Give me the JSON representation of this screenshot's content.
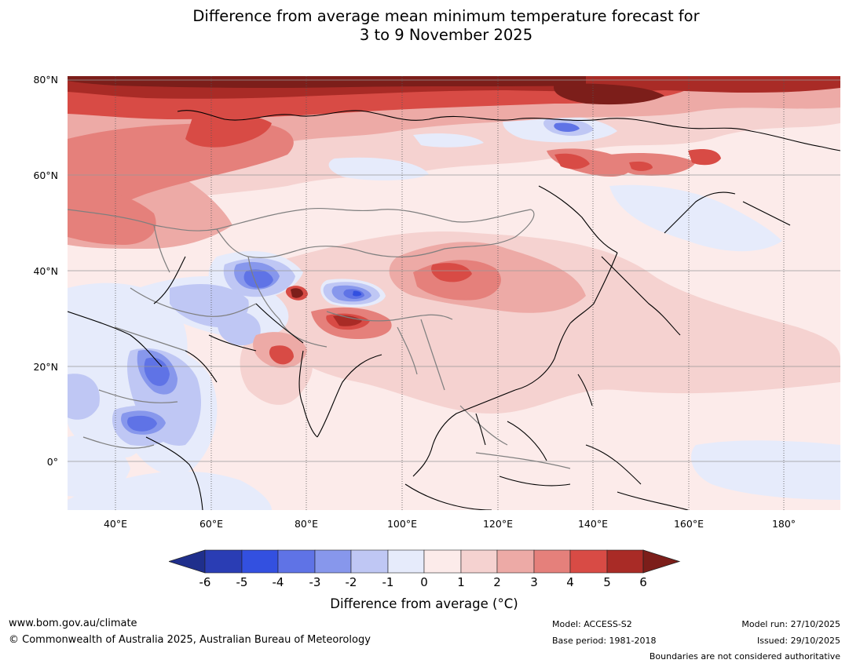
{
  "title": {
    "line1": "Difference from average mean minimum temperature forecast for",
    "line2": "3 to 9 November 2025"
  },
  "map": {
    "lat_labels": [
      "80°N",
      "60°N",
      "40°N",
      "20°N",
      "0°"
    ],
    "lon_labels": [
      "40°E",
      "60°E",
      "80°E",
      "100°E",
      "120°E",
      "140°E",
      "160°E",
      "180°"
    ],
    "colors": {
      "ocean_base": "#fcebea",
      "coast": "#000000",
      "borders": "#7f7f7f"
    }
  },
  "colorbar": {
    "tick_labels": [
      "-6",
      "-5",
      "-4",
      "-3",
      "-2",
      "-1",
      "0",
      "1",
      "2",
      "3",
      "4",
      "5",
      "6"
    ],
    "colors": [
      "#1f2f8c",
      "#2a3db4",
      "#3350e0",
      "#5f73e6",
      "#8797ec",
      "#bfc7f4",
      "#e6ebfb",
      "#fcebea",
      "#f5d2d0",
      "#edaaa6",
      "#e5807b",
      "#d84b45",
      "#a92b26",
      "#7c1e1a"
    ],
    "label": "Difference from average (°C)"
  },
  "footer": {
    "website": "www.bom.gov.au/climate",
    "copyright": "© Commonwealth of Australia 2025, Australian Bureau of Meteorology",
    "model": "Model: ACCESS-S2",
    "base_period": "Base period: 1981-2018",
    "model_run": "Model run: 27/10/2025",
    "issued": "Issued: 29/10/2025",
    "disclaimer": "Boundaries are not considered authoritative"
  }
}
